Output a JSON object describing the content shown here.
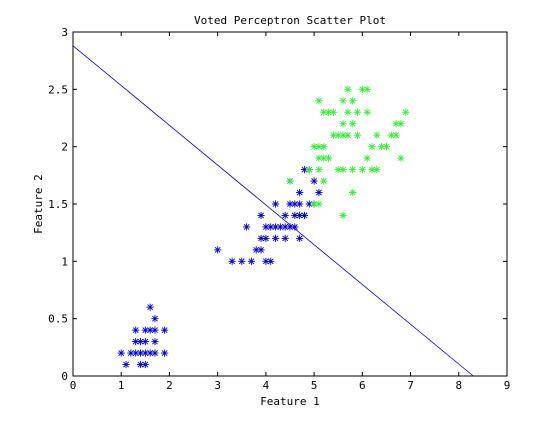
{
  "chart_data": {
    "type": "scatter",
    "title": "Voted Perceptron Scatter Plot",
    "xlabel": "Feature 1",
    "ylabel": "Feature 2",
    "xlim": [
      0,
      9
    ],
    "ylim": [
      0,
      3
    ],
    "xticks": [
      "0",
      "1",
      "2",
      "3",
      "4",
      "5",
      "6",
      "7",
      "8",
      "9"
    ],
    "yticks": [
      "0",
      "0.5",
      "1",
      "1.5",
      "2",
      "2.5",
      "3"
    ],
    "marker": "*",
    "grid": false,
    "series": [
      {
        "color": "#0000cc",
        "points": [
          [
            1.0,
            0.2
          ],
          [
            1.1,
            0.1
          ],
          [
            1.2,
            0.2
          ],
          [
            1.3,
            0.2
          ],
          [
            1.3,
            0.3
          ],
          [
            1.3,
            0.4
          ],
          [
            1.4,
            0.2
          ],
          [
            1.4,
            0.3
          ],
          [
            1.4,
            0.1
          ],
          [
            1.5,
            0.1
          ],
          [
            1.5,
            0.2
          ],
          [
            1.5,
            0.3
          ],
          [
            1.5,
            0.4
          ],
          [
            1.6,
            0.2
          ],
          [
            1.6,
            0.4
          ],
          [
            1.6,
            0.6
          ],
          [
            1.7,
            0.2
          ],
          [
            1.7,
            0.3
          ],
          [
            1.7,
            0.4
          ],
          [
            1.7,
            0.5
          ],
          [
            1.9,
            0.2
          ],
          [
            1.9,
            0.4
          ],
          [
            3.0,
            1.1
          ],
          [
            3.3,
            1.0
          ],
          [
            3.5,
            1.0
          ],
          [
            3.6,
            1.3
          ],
          [
            3.7,
            1.0
          ],
          [
            3.8,
            1.1
          ],
          [
            3.9,
            1.1
          ],
          [
            3.9,
            1.2
          ],
          [
            3.9,
            1.4
          ],
          [
            4.0,
            1.0
          ],
          [
            4.0,
            1.2
          ],
          [
            4.0,
            1.3
          ],
          [
            4.1,
            1.0
          ],
          [
            4.1,
            1.3
          ],
          [
            4.2,
            1.3
          ],
          [
            4.2,
            1.2
          ],
          [
            4.2,
            1.5
          ],
          [
            4.3,
            1.3
          ],
          [
            4.4,
            1.2
          ],
          [
            4.4,
            1.3
          ],
          [
            4.4,
            1.4
          ],
          [
            4.5,
            1.3
          ],
          [
            4.5,
            1.5
          ],
          [
            4.6,
            1.3
          ],
          [
            4.6,
            1.4
          ],
          [
            4.6,
            1.5
          ],
          [
            4.7,
            1.2
          ],
          [
            4.7,
            1.4
          ],
          [
            4.7,
            1.5
          ],
          [
            4.7,
            1.6
          ],
          [
            4.8,
            1.4
          ],
          [
            4.8,
            1.8
          ],
          [
            4.9,
            1.5
          ],
          [
            5.0,
            1.7
          ],
          [
            5.1,
            1.6
          ],
          [
            4.5,
            1.7
          ],
          [
            4.9,
            1.8
          ],
          [
            5.0,
            1.5
          ]
        ]
      },
      {
        "color": "#33ee33",
        "points": [
          [
            4.5,
            1.7
          ],
          [
            4.9,
            1.8
          ],
          [
            5.0,
            1.5
          ],
          [
            5.0,
            2.0
          ],
          [
            5.1,
            1.5
          ],
          [
            5.1,
            1.8
          ],
          [
            5.1,
            1.9
          ],
          [
            5.1,
            2.0
          ],
          [
            5.1,
            2.4
          ],
          [
            5.2,
            1.9
          ],
          [
            5.2,
            2.0
          ],
          [
            5.2,
            2.3
          ],
          [
            5.3,
            1.9
          ],
          [
            5.3,
            2.3
          ],
          [
            5.4,
            2.1
          ],
          [
            5.4,
            2.3
          ],
          [
            5.5,
            1.8
          ],
          [
            5.5,
            2.1
          ],
          [
            5.6,
            1.4
          ],
          [
            5.6,
            1.8
          ],
          [
            5.6,
            2.1
          ],
          [
            5.6,
            2.2
          ],
          [
            5.6,
            2.4
          ],
          [
            5.7,
            2.1
          ],
          [
            5.7,
            2.3
          ],
          [
            5.7,
            2.5
          ],
          [
            5.8,
            1.6
          ],
          [
            5.8,
            1.8
          ],
          [
            5.8,
            2.2
          ],
          [
            5.8,
            2.4
          ],
          [
            5.9,
            2.1
          ],
          [
            5.9,
            2.3
          ],
          [
            6.0,
            1.8
          ],
          [
            6.0,
            2.5
          ],
          [
            6.1,
            1.9
          ],
          [
            6.1,
            2.3
          ],
          [
            6.1,
            2.5
          ],
          [
            6.2,
            1.8
          ],
          [
            6.2,
            2.0
          ],
          [
            6.3,
            1.8
          ],
          [
            6.3,
            2.1
          ],
          [
            6.4,
            2.0
          ],
          [
            6.5,
            2.0
          ],
          [
            6.6,
            2.1
          ],
          [
            6.7,
            2.2
          ],
          [
            6.7,
            2.1
          ],
          [
            6.8,
            2.2
          ],
          [
            6.8,
            1.9
          ],
          [
            6.9,
            2.3
          ],
          [
            5.2,
            1.7
          ]
        ]
      }
    ],
    "lines": [
      {
        "color": "#0000cc",
        "x": [
          0.0,
          8.3
        ],
        "y": [
          2.88,
          0.0
        ]
      }
    ]
  }
}
